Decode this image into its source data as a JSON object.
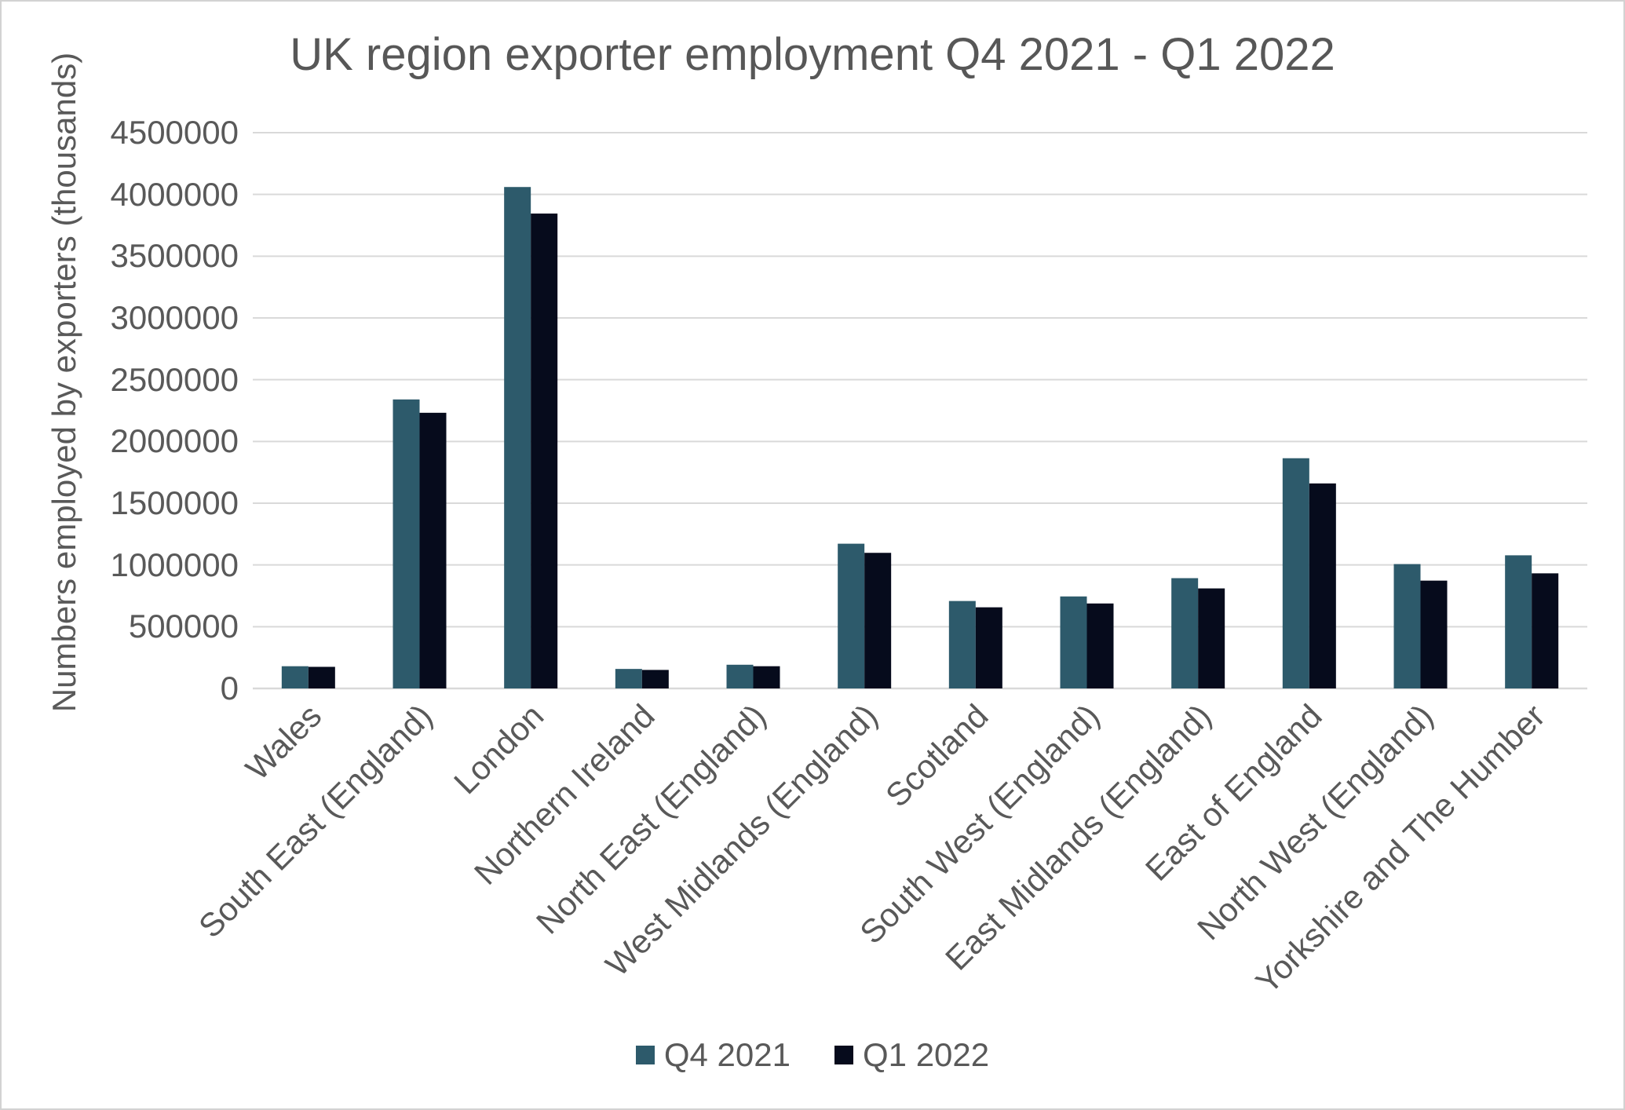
{
  "frame": {
    "background": "#ffffff",
    "border_color": "#d2d2d2"
  },
  "chart_data": {
    "type": "bar",
    "title": "UK region exporter employment Q4 2021 - Q1 2022",
    "xlabel": "",
    "ylabel": "Numbers employed by exporters (thousands)",
    "categories": [
      "Wales",
      "South East (England)",
      "London",
      "Northern Ireland",
      "North East (England)",
      "West Midlands (England)",
      "Scotland",
      "South West (England)",
      "East Midlands (England)",
      "East of England",
      "North West (England)",
      "Yorkshire and The Humber"
    ],
    "series": [
      {
        "name": "Q4 2021",
        "color": "#2d5a6b",
        "values": [
          180000,
          2340000,
          4060000,
          158000,
          192000,
          1172000,
          708000,
          745000,
          893000,
          1864000,
          1007000,
          1078000
        ]
      },
      {
        "name": "Q1 2022",
        "color": "#060b1c",
        "values": [
          175000,
          2232000,
          3845000,
          150000,
          180000,
          1098000,
          657000,
          688000,
          810000,
          1660000,
          873000,
          932000
        ]
      }
    ],
    "ylim": [
      0,
      4500000
    ],
    "ytick_step": 500000,
    "grid": true,
    "gridline_color": "#d9d9d9",
    "text_color": "#595959",
    "legend_position": "bottom"
  }
}
